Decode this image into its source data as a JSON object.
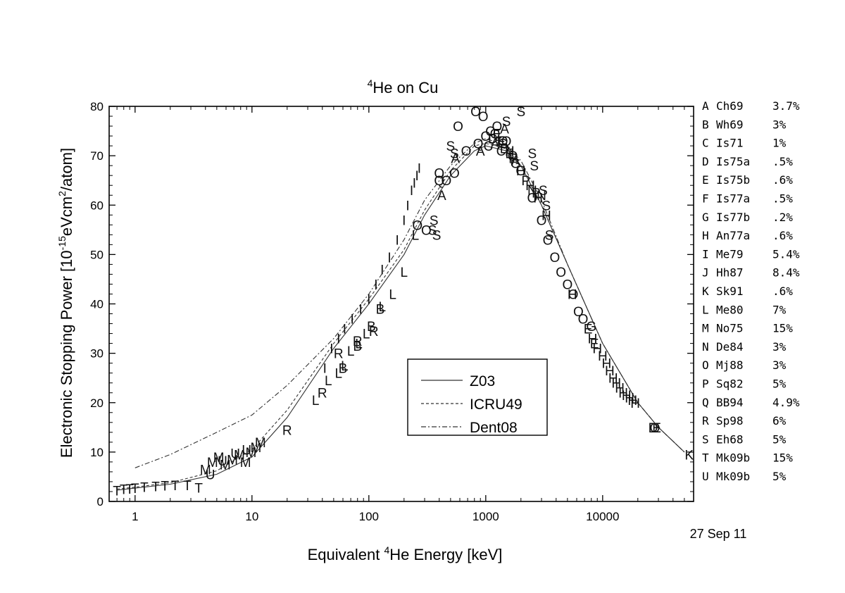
{
  "chart_data": {
    "type": "scatter",
    "title": {
      "prefix": "",
      "sup": "4",
      "main": "He on Cu"
    },
    "xlabel": {
      "prefix": "Equivalent ",
      "sup": "4",
      "main": "He Energy [keV]"
    },
    "ylabel": {
      "pre": "Electronic Stopping Power [10",
      "sup1": "-15",
      "mid": "eVcm",
      "sup2": "2",
      "post": "/atom]"
    },
    "x_scale": "log",
    "xlim": [
      0.6,
      60000
    ],
    "ylim": [
      0,
      80
    ],
    "x_ticks": [
      1,
      10,
      100,
      1000,
      10000
    ],
    "x_tick_labels": [
      "1",
      "10",
      "100",
      "1000",
      "10000"
    ],
    "y_ticks": [
      0,
      10,
      20,
      30,
      40,
      50,
      60,
      70,
      80
    ],
    "y_tick_labels": [
      "0",
      "10",
      "20",
      "30",
      "40",
      "50",
      "60",
      "70",
      "80"
    ],
    "date_stamp": "27 Sep 11",
    "curves": [
      {
        "name": "Z03",
        "style": "solid",
        "points": [
          [
            0.7,
            2.3
          ],
          [
            1,
            2.7
          ],
          [
            2,
            3.5
          ],
          [
            5,
            5.5
          ],
          [
            10,
            9
          ],
          [
            20,
            17
          ],
          [
            50,
            31
          ],
          [
            100,
            40
          ],
          [
            200,
            50
          ],
          [
            300,
            58
          ],
          [
            500,
            66
          ],
          [
            800,
            71
          ],
          [
            1000,
            72
          ],
          [
            1500,
            71
          ],
          [
            2000,
            68
          ],
          [
            3000,
            60
          ],
          [
            5000,
            48
          ],
          [
            10000,
            32
          ],
          [
            20000,
            20
          ],
          [
            30000,
            15
          ],
          [
            50000,
            10
          ]
        ]
      },
      {
        "name": "ICRU49",
        "style": "dash",
        "points": [
          [
            0.7,
            2.5
          ],
          [
            1,
            2.9
          ],
          [
            2,
            3.8
          ],
          [
            5,
            6.2
          ],
          [
            10,
            10.5
          ],
          [
            20,
            18.5
          ],
          [
            50,
            32
          ],
          [
            100,
            41
          ],
          [
            200,
            51
          ],
          [
            300,
            59
          ],
          [
            500,
            67
          ],
          [
            800,
            72
          ],
          [
            1000,
            72.5
          ],
          [
            1500,
            71.5
          ],
          [
            2000,
            68
          ],
          [
            3000,
            60
          ],
          [
            5000,
            48
          ],
          [
            10000,
            32
          ],
          [
            20000,
            20
          ],
          [
            30000,
            15
          ],
          [
            50000,
            10
          ]
        ]
      },
      {
        "name": "Dent08",
        "style": "dashdot",
        "points": [
          [
            1,
            6.8
          ],
          [
            2,
            9.5
          ],
          [
            5,
            14
          ],
          [
            10,
            17.5
          ],
          [
            20,
            23.5
          ],
          [
            50,
            33
          ],
          [
            100,
            42
          ],
          [
            200,
            53
          ],
          [
            300,
            61
          ],
          [
            500,
            68
          ],
          [
            800,
            72.5
          ],
          [
            1000,
            73.5
          ],
          [
            1500,
            72
          ],
          [
            2000,
            69
          ],
          [
            3000,
            61
          ],
          [
            5000,
            48
          ],
          [
            10000,
            32
          ],
          [
            20000,
            20
          ],
          [
            30000,
            15
          ],
          [
            50000,
            10
          ]
        ]
      }
    ],
    "legend_placement": "center",
    "points": [
      {
        "l": "T",
        "x": 0.7,
        "y": 2.2
      },
      {
        "l": "T",
        "x": 0.8,
        "y": 2.5
      },
      {
        "l": "T",
        "x": 0.9,
        "y": 2.6
      },
      {
        "l": "T",
        "x": 1.0,
        "y": 2.7
      },
      {
        "l": "T",
        "x": 1.2,
        "y": 2.9
      },
      {
        "l": "T",
        "x": 1.5,
        "y": 3.1
      },
      {
        "l": "T",
        "x": 1.8,
        "y": 3.2
      },
      {
        "l": "T",
        "x": 2.2,
        "y": 3.3
      },
      {
        "l": "T",
        "x": 2.8,
        "y": 3.3
      },
      {
        "l": "T",
        "x": 3.5,
        "y": 2.8
      },
      {
        "l": "M",
        "x": 4.0,
        "y": 6.5
      },
      {
        "l": "M",
        "x": 4.6,
        "y": 8.0
      },
      {
        "l": "M",
        "x": 5.2,
        "y": 9.0
      },
      {
        "l": "M",
        "x": 5.9,
        "y": 7.5
      },
      {
        "l": "M",
        "x": 6.8,
        "y": 8.5
      },
      {
        "l": "M",
        "x": 7.8,
        "y": 9.5
      },
      {
        "l": "M",
        "x": 8.8,
        "y": 8.0
      },
      {
        "l": "M",
        "x": 9.8,
        "y": 10.0
      },
      {
        "l": "M",
        "x": 10.8,
        "y": 11.0
      },
      {
        "l": "M",
        "x": 11.8,
        "y": 12.0
      },
      {
        "l": "U",
        "x": 4.4,
        "y": 5.5
      },
      {
        "l": "U",
        "x": 5.6,
        "y": 8.3
      },
      {
        "l": "U",
        "x": 7.2,
        "y": 9.8
      },
      {
        "l": "U",
        "x": 9.0,
        "y": 10.5
      },
      {
        "l": "R",
        "x": 20,
        "y": 14.5
      },
      {
        "l": "R",
        "x": 40,
        "y": 22.0
      },
      {
        "l": "R",
        "x": 55,
        "y": 30.0
      },
      {
        "l": "R",
        "x": 80,
        "y": 32.5
      },
      {
        "l": "R",
        "x": 110,
        "y": 34.5
      },
      {
        "l": "L",
        "x": 35,
        "y": 20.5
      },
      {
        "l": "L",
        "x": 45,
        "y": 24.5
      },
      {
        "l": "L",
        "x": 55,
        "y": 26.0
      },
      {
        "l": "L",
        "x": 62,
        "y": 27.5
      },
      {
        "l": "L",
        "x": 70,
        "y": 30.5
      },
      {
        "l": "L",
        "x": 82,
        "y": 32.0
      },
      {
        "l": "L",
        "x": 95,
        "y": 34.0
      },
      {
        "l": "L",
        "x": 130,
        "y": 39.5
      },
      {
        "l": "L",
        "x": 160,
        "y": 42.0
      },
      {
        "l": "L",
        "x": 200,
        "y": 46.5
      },
      {
        "l": "L",
        "x": 250,
        "y": 54.0
      },
      {
        "l": "B",
        "x": 60,
        "y": 27.0
      },
      {
        "l": "B",
        "x": 80,
        "y": 31.5
      },
      {
        "l": "B",
        "x": 105,
        "y": 35.5
      },
      {
        "l": "B",
        "x": 125,
        "y": 39.0
      },
      {
        "l": "I",
        "x": 42,
        "y": 27
      },
      {
        "l": "I",
        "x": 48,
        "y": 31
      },
      {
        "l": "I",
        "x": 55,
        "y": 33
      },
      {
        "l": "I",
        "x": 62,
        "y": 35
      },
      {
        "l": "I",
        "x": 72,
        "y": 37
      },
      {
        "l": "I",
        "x": 85,
        "y": 39
      },
      {
        "l": "I",
        "x": 100,
        "y": 41
      },
      {
        "l": "I",
        "x": 115,
        "y": 44
      },
      {
        "l": "I",
        "x": 130,
        "y": 47
      },
      {
        "l": "I",
        "x": 150,
        "y": 49.5
      },
      {
        "l": "I",
        "x": 175,
        "y": 53
      },
      {
        "l": "I",
        "x": 200,
        "y": 57
      },
      {
        "l": "I",
        "x": 215,
        "y": 60
      },
      {
        "l": "I",
        "x": 232,
        "y": 63
      },
      {
        "l": "I",
        "x": 245,
        "y": 64.5
      },
      {
        "l": "I",
        "x": 258,
        "y": 66
      },
      {
        "l": "I",
        "x": 270,
        "y": 67.5
      },
      {
        "l": "O",
        "x": 260,
        "y": 56
      },
      {
        "l": "O",
        "x": 310,
        "y": 55
      },
      {
        "l": "O",
        "x": 400,
        "y": 66.5
      },
      {
        "l": "O",
        "x": 460,
        "y": 65
      },
      {
        "l": "O",
        "x": 540,
        "y": 66.5
      },
      {
        "l": "O",
        "x": 580,
        "y": 76
      },
      {
        "l": "O",
        "x": 680,
        "y": 71
      },
      {
        "l": "O",
        "x": 820,
        "y": 79
      },
      {
        "l": "O",
        "x": 950,
        "y": 78
      },
      {
        "l": "O",
        "x": 1000,
        "y": 74
      },
      {
        "l": "O",
        "x": 1100,
        "y": 75
      },
      {
        "l": "O",
        "x": 1250,
        "y": 76
      },
      {
        "l": "O",
        "x": 1400,
        "y": 73
      },
      {
        "l": "O",
        "x": 1700,
        "y": 70
      },
      {
        "l": "O",
        "x": 2000,
        "y": 67
      },
      {
        "l": "O",
        "x": 2500,
        "y": 61.5
      },
      {
        "l": "O",
        "x": 3000,
        "y": 57
      },
      {
        "l": "O",
        "x": 3400,
        "y": 53
      },
      {
        "l": "O",
        "x": 3900,
        "y": 49.5
      },
      {
        "l": "O",
        "x": 4400,
        "y": 46.5
      },
      {
        "l": "O",
        "x": 5000,
        "y": 44
      },
      {
        "l": "O",
        "x": 5600,
        "y": 42
      },
      {
        "l": "O",
        "x": 6200,
        "y": 38.5
      },
      {
        "l": "O",
        "x": 6800,
        "y": 37
      },
      {
        "l": "O",
        "x": 28000,
        "y": 15
      },
      {
        "l": "S",
        "x": 350,
        "y": 55
      },
      {
        "l": "S",
        "x": 360,
        "y": 57
      },
      {
        "l": "S",
        "x": 380,
        "y": 54
      },
      {
        "l": "S",
        "x": 500,
        "y": 72
      },
      {
        "l": "S",
        "x": 540,
        "y": 70.5
      },
      {
        "l": "S",
        "x": 1500,
        "y": 77
      },
      {
        "l": "S",
        "x": 2000,
        "y": 79
      },
      {
        "l": "S",
        "x": 2500,
        "y": 70.5
      },
      {
        "l": "S",
        "x": 2600,
        "y": 68
      },
      {
        "l": "S",
        "x": 3100,
        "y": 63
      },
      {
        "l": "S",
        "x": 3300,
        "y": 60
      },
      {
        "l": "S",
        "x": 3500,
        "y": 54
      },
      {
        "l": "Q",
        "x": 400,
        "y": 65
      },
      {
        "l": "Q",
        "x": 860,
        "y": 72.5
      },
      {
        "l": "Q",
        "x": 1200,
        "y": 74.5
      },
      {
        "l": "Q",
        "x": 1500,
        "y": 73
      },
      {
        "l": "A",
        "x": 420,
        "y": 62
      },
      {
        "l": "A",
        "x": 550,
        "y": 69.5
      },
      {
        "l": "A",
        "x": 900,
        "y": 71
      },
      {
        "l": "A",
        "x": 1200,
        "y": 72.5
      },
      {
        "l": "A",
        "x": 1450,
        "y": 75.5
      },
      {
        "l": "A",
        "x": 1800,
        "y": 69
      },
      {
        "l": "C",
        "x": 1050,
        "y": 72
      },
      {
        "l": "C",
        "x": 1350,
        "y": 71
      },
      {
        "l": "D",
        "x": 1150,
        "y": 73.5
      },
      {
        "l": "D",
        "x": 1450,
        "y": 71.5
      },
      {
        "l": "D",
        "x": 27000,
        "y": 15
      },
      {
        "l": "E",
        "x": 1250,
        "y": 74.5
      },
      {
        "l": "E",
        "x": 1600,
        "y": 70.5
      },
      {
        "l": "E",
        "x": 7500,
        "y": 35
      },
      {
        "l": "E",
        "x": 8500,
        "y": 32
      },
      {
        "l": "E",
        "x": 29000,
        "y": 15
      },
      {
        "l": "F",
        "x": 1350,
        "y": 73
      },
      {
        "l": "F",
        "x": 1700,
        "y": 69.5
      },
      {
        "l": "G",
        "x": 1400,
        "y": 72.5
      },
      {
        "l": "G",
        "x": 1800,
        "y": 68.5
      },
      {
        "l": "G",
        "x": 8000,
        "y": 35.5
      },
      {
        "l": "H",
        "x": 1600,
        "y": 71
      },
      {
        "l": "H",
        "x": 2000,
        "y": 67
      },
      {
        "l": "H",
        "x": 2400,
        "y": 64
      },
      {
        "l": "H",
        "x": 2800,
        "y": 61.5
      },
      {
        "l": "H",
        "x": 3300,
        "y": 58
      },
      {
        "l": "H",
        "x": 5500,
        "y": 42
      },
      {
        "l": "H",
        "x": 8200,
        "y": 33
      },
      {
        "l": "H",
        "x": 9000,
        "y": 31
      },
      {
        "l": "H",
        "x": 10000,
        "y": 29.5
      },
      {
        "l": "H",
        "x": 10800,
        "y": 28
      },
      {
        "l": "H",
        "x": 11500,
        "y": 26.5
      },
      {
        "l": "H",
        "x": 12300,
        "y": 25
      },
      {
        "l": "H",
        "x": 13100,
        "y": 24
      },
      {
        "l": "H",
        "x": 14000,
        "y": 23
      },
      {
        "l": "H",
        "x": 15000,
        "y": 22
      },
      {
        "l": "H",
        "x": 16000,
        "y": 21.5
      },
      {
        "l": "H",
        "x": 17000,
        "y": 21
      },
      {
        "l": "H",
        "x": 18000,
        "y": 20.5
      },
      {
        "l": "H",
        "x": 19000,
        "y": 20
      },
      {
        "l": "N",
        "x": 2500,
        "y": 63
      },
      {
        "l": "N",
        "x": 3000,
        "y": 62
      },
      {
        "l": "P",
        "x": 2200,
        "y": 65
      },
      {
        "l": "P",
        "x": 2700,
        "y": 62.5
      },
      {
        "l": "K",
        "x": 55000,
        "y": 9.5
      }
    ],
    "dataset_key": [
      {
        "letter": "A",
        "ref": "Ch69",
        "err": "3.7%"
      },
      {
        "letter": "B",
        "ref": "Wh69",
        "err": "3%"
      },
      {
        "letter": "C",
        "ref": "Is71",
        "err": "1%"
      },
      {
        "letter": "D",
        "ref": "Is75a",
        "err": ".5%"
      },
      {
        "letter": "E",
        "ref": "Is75b",
        "err": ".6%"
      },
      {
        "letter": "F",
        "ref": "Is77a",
        "err": ".5%"
      },
      {
        "letter": "G",
        "ref": "Is77b",
        "err": ".2%"
      },
      {
        "letter": "H",
        "ref": "An77a",
        "err": ".6%"
      },
      {
        "letter": "I",
        "ref": "Me79",
        "err": "5.4%"
      },
      {
        "letter": "J",
        "ref": "Hh87",
        "err": "8.4%"
      },
      {
        "letter": "K",
        "ref": "Sk91",
        "err": ".6%"
      },
      {
        "letter": "L",
        "ref": "Me80",
        "err": "7%"
      },
      {
        "letter": "M",
        "ref": "No75",
        "err": "15%"
      },
      {
        "letter": "N",
        "ref": "De84",
        "err": "3%"
      },
      {
        "letter": "O",
        "ref": "Mj88",
        "err": "3%"
      },
      {
        "letter": "P",
        "ref": "Sq82",
        "err": "5%"
      },
      {
        "letter": "Q",
        "ref": "BB94",
        "err": "4.9%"
      },
      {
        "letter": "R",
        "ref": "Sp98",
        "err": "6%"
      },
      {
        "letter": "S",
        "ref": "Eh68",
        "err": "5%"
      },
      {
        "letter": "T",
        "ref": "Mk09b",
        "err": "15%"
      },
      {
        "letter": "U",
        "ref": "Mk09b",
        "err": "5%"
      }
    ]
  }
}
